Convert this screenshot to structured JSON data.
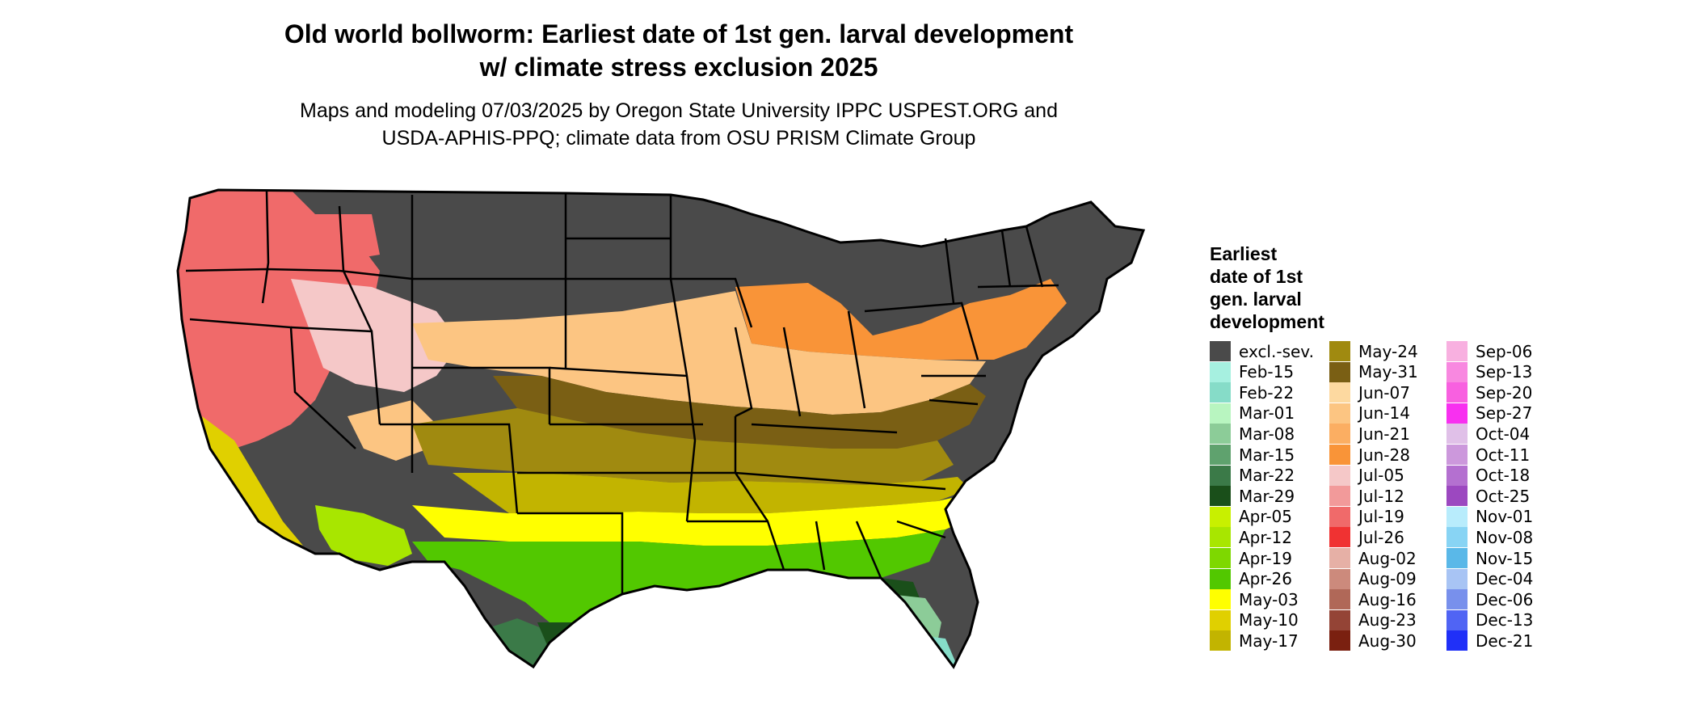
{
  "title": {
    "line1": "Old world bollworm: Earliest date of 1st gen. larval development",
    "line2": "w/ climate stress exclusion 2025"
  },
  "subtitle": {
    "line1": "Maps and modeling 07/03/2025 by Oregon State University IPPC USPEST.ORG and",
    "line2": "USDA-APHIS-PPQ; climate data from OSU PRISM Climate Group"
  },
  "legend": {
    "title": [
      "Earliest",
      "date of 1st",
      "gen. larval",
      "development"
    ],
    "items": [
      {
        "label": "excl.-sev.",
        "color": "#4a4a4a"
      },
      {
        "label": "Feb-15",
        "color": "#a6f0e0"
      },
      {
        "label": "Feb-22",
        "color": "#86dcc8"
      },
      {
        "label": "Mar-01",
        "color": "#b8f5c0"
      },
      {
        "label": "Mar-08",
        "color": "#8ccc98"
      },
      {
        "label": "Mar-15",
        "color": "#5fa26e"
      },
      {
        "label": "Mar-22",
        "color": "#3b7a48"
      },
      {
        "label": "Mar-29",
        "color": "#1a4f1a"
      },
      {
        "label": "Apr-05",
        "color": "#c8f000"
      },
      {
        "label": "Apr-12",
        "color": "#a8e600"
      },
      {
        "label": "Apr-19",
        "color": "#7ed800"
      },
      {
        "label": "Apr-26",
        "color": "#52c800"
      },
      {
        "label": "May-03",
        "color": "#ffff00"
      },
      {
        "label": "May-10",
        "color": "#e0d000"
      },
      {
        "label": "May-17",
        "color": "#c2b400"
      },
      {
        "label": "May-24",
        "color": "#a08a10"
      },
      {
        "label": "May-31",
        "color": "#7a5f14"
      },
      {
        "label": "Jun-07",
        "color": "#fdd9a0"
      },
      {
        "label": "Jun-14",
        "color": "#fcc582"
      },
      {
        "label": "Jun-21",
        "color": "#fbae62"
      },
      {
        "label": "Jun-28",
        "color": "#f99438"
      },
      {
        "label": "Jul-05",
        "color": "#f5c8c8"
      },
      {
        "label": "Jul-12",
        "color": "#f29a9a"
      },
      {
        "label": "Jul-19",
        "color": "#f06a6a"
      },
      {
        "label": "Jul-26",
        "color": "#f03232"
      },
      {
        "label": "Aug-02",
        "color": "#e6b0a6"
      },
      {
        "label": "Aug-09",
        "color": "#cc8a7c"
      },
      {
        "label": "Aug-16",
        "color": "#b06858"
      },
      {
        "label": "Aug-23",
        "color": "#944436"
      },
      {
        "label": "Aug-30",
        "color": "#7a2010"
      },
      {
        "label": "Sep-06",
        "color": "#f8b0e0"
      },
      {
        "label": "Sep-13",
        "color": "#f888e0"
      },
      {
        "label": "Sep-20",
        "color": "#f860e0"
      },
      {
        "label": "Sep-27",
        "color": "#f830f0"
      },
      {
        "label": "Oct-04",
        "color": "#e0c0e8"
      },
      {
        "label": "Oct-11",
        "color": "#cc98dc"
      },
      {
        "label": "Oct-18",
        "color": "#b470d0"
      },
      {
        "label": "Oct-25",
        "color": "#9c48c0"
      },
      {
        "label": "Nov-01",
        "color": "#b8ecfc"
      },
      {
        "label": "Nov-08",
        "color": "#88d4f4"
      },
      {
        "label": "Nov-15",
        "color": "#5ab8e8"
      },
      {
        "label": "Dec-04",
        "color": "#a8c4f4"
      },
      {
        "label": "Dec-06",
        "color": "#7890ec"
      },
      {
        "label": "Dec-13",
        "color": "#5064f4"
      },
      {
        "label": "Dec-21",
        "color": "#2030f8"
      }
    ]
  },
  "map_zones": [
    {
      "name": "zone-excluded",
      "color": "#4a4a4a"
    },
    {
      "name": "zone-west-jul-aug",
      "color": "#f06a6a"
    },
    {
      "name": "zone-west-jul-05",
      "color": "#f5c8c8"
    },
    {
      "name": "zone-jun-28",
      "color": "#f99438"
    },
    {
      "name": "zone-jun-14",
      "color": "#fcc582"
    },
    {
      "name": "zone-may-31",
      "color": "#7a5f14"
    },
    {
      "name": "zone-may-24",
      "color": "#a08a10"
    },
    {
      "name": "zone-may-17",
      "color": "#c2b400"
    },
    {
      "name": "zone-may-03",
      "color": "#ffff00"
    },
    {
      "name": "zone-apr-26",
      "color": "#52c800"
    },
    {
      "name": "zone-apr-12",
      "color": "#a8e600"
    },
    {
      "name": "zone-mar-22",
      "color": "#3b7a48"
    },
    {
      "name": "zone-mar-29",
      "color": "#1a4f1a"
    },
    {
      "name": "zone-mar-08",
      "color": "#8ccc98"
    },
    {
      "name": "zone-feb-22",
      "color": "#86dcc8"
    },
    {
      "name": "zone-ca-central-may-10",
      "color": "#e0d000"
    }
  ]
}
